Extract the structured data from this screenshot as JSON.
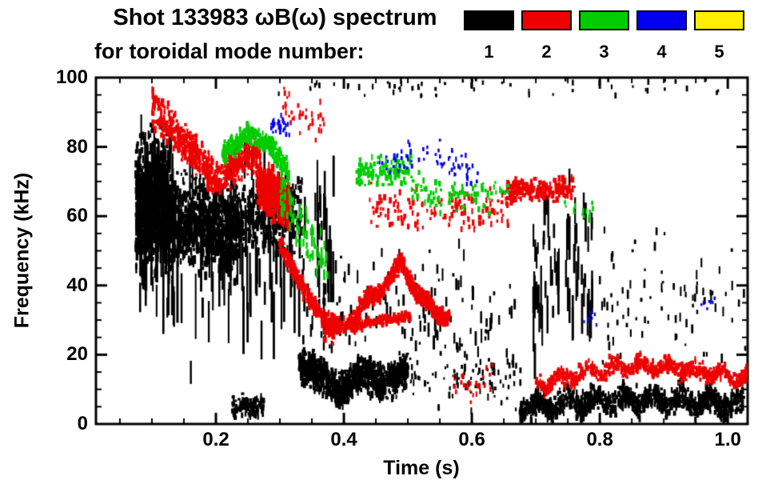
{
  "chart_data": {
    "type": "scatter",
    "title": "Shot 133983 ωB(ω) spectrum",
    "subtitle": "for toroidal mode number:",
    "xlabel": "Time (s)",
    "ylabel": "Frequency (kHz)",
    "xlim": [
      0.0125,
      1.031
    ],
    "ylim": [
      0,
      100
    ],
    "xticks": [
      0.2,
      0.4,
      0.6,
      0.8,
      1.0
    ],
    "yticks": [
      0,
      20,
      40,
      60,
      80,
      100
    ],
    "x_minor_step": 0.05,
    "y_minor_step": 5,
    "legend_position": "top-right",
    "grid": false,
    "legend": [
      {
        "mode": 1,
        "color": "#000000"
      },
      {
        "mode": 2,
        "color": "#ee0000"
      },
      {
        "mode": 3,
        "color": "#00cc00"
      },
      {
        "mode": 4,
        "color": "#0000ee"
      },
      {
        "mode": 5,
        "color": "#ffee00"
      }
    ],
    "clusters": [
      {
        "mode": 1,
        "n": 700,
        "t": [
          0.075,
          0.125
        ],
        "path": [
          [
            0.075,
            64
          ],
          [
            0.125,
            66
          ]
        ],
        "spread": 17,
        "sz": [
          2,
          4,
          3,
          14
        ],
        "seed": 1
      },
      {
        "mode": 1,
        "n": 130,
        "t": [
          0.078,
          0.135
        ],
        "path": [
          [
            0.078,
            60
          ],
          [
            0.135,
            60
          ]
        ],
        "spread": 22,
        "sz": [
          2,
          3,
          18,
          60
        ],
        "seed": 2
      },
      {
        "mode": 1,
        "n": 900,
        "t": [
          0.115,
          0.235
        ],
        "path": [
          [
            0.115,
            60
          ],
          [
            0.235,
            55
          ]
        ],
        "spread": 12,
        "sz": [
          2,
          4,
          3,
          12
        ],
        "seed": 3
      },
      {
        "mode": 1,
        "n": 95,
        "t": [
          0.115,
          0.345
        ],
        "path": [
          [
            0.115,
            50
          ],
          [
            0.345,
            50
          ]
        ],
        "spread": 28,
        "sz": [
          2,
          3,
          24,
          85
        ],
        "seed": 4
      },
      {
        "mode": 1,
        "n": 380,
        "t": [
          0.215,
          0.335
        ],
        "path": [
          [
            0.215,
            58
          ],
          [
            0.335,
            62
          ]
        ],
        "spread": 10,
        "sz": [
          2,
          4,
          3,
          12
        ],
        "seed": 5
      },
      {
        "mode": 1,
        "n": 130,
        "t": [
          0.225,
          0.275
        ],
        "path": [
          [
            0.225,
            5
          ],
          [
            0.275,
            5
          ]
        ],
        "spread": 3,
        "sz": [
          2,
          4,
          3,
          8
        ],
        "seed": 6
      },
      {
        "mode": 1,
        "n": 1000,
        "t": [
          0.33,
          0.5
        ],
        "path": [
          [
            0.33,
            18
          ],
          [
            0.36,
            12
          ],
          [
            0.4,
            12
          ],
          [
            0.44,
            13
          ],
          [
            0.5,
            14
          ]
        ],
        "spread": 5,
        "sz": [
          2,
          4,
          3,
          10
        ],
        "wiggle": [
          2,
          90
        ],
        "seed": 7
      },
      {
        "mode": 1,
        "n": 140,
        "t": [
          0.33,
          0.67
        ],
        "path": [
          [
            0.33,
            35
          ],
          [
            0.67,
            30
          ]
        ],
        "spread": 18,
        "sz": [
          2,
          3,
          3,
          18
        ],
        "seed": 8
      },
      {
        "mode": 1,
        "n": 25,
        "t": [
          0.355,
          0.385
        ],
        "path": [
          [
            0.355,
            55
          ],
          [
            0.385,
            55
          ]
        ],
        "spread": 30,
        "sz": [
          2,
          3,
          20,
          70
        ],
        "seed": 14
      },
      {
        "mode": 1,
        "n": 60,
        "t": [
          0.28,
          1.02
        ],
        "path": [
          [
            0.28,
            97
          ],
          [
            1.02,
            97
          ]
        ],
        "spread": 3,
        "sz": [
          2,
          3,
          3,
          8
        ],
        "seed": 9
      },
      {
        "mode": 1,
        "n": 1100,
        "t": [
          0.675,
          1.025
        ],
        "path": [
          [
            0.675,
            5
          ],
          [
            0.75,
            6
          ],
          [
            0.85,
            7
          ],
          [
            1.025,
            6
          ]
        ],
        "spread": 3.5,
        "sz": [
          2,
          4,
          3,
          9
        ],
        "wiggle": [
          1.5,
          140
        ],
        "seed": 10
      },
      {
        "mode": 1,
        "n": 70,
        "t": [
          0.695,
          0.79
        ],
        "path": [
          [
            0.695,
            45
          ],
          [
            0.79,
            45
          ]
        ],
        "spread": 28,
        "sz": [
          2,
          3,
          14,
          55
        ],
        "seed": 11
      },
      {
        "mode": 1,
        "n": 85,
        "t": [
          0.8,
          1.03
        ],
        "path": [
          [
            0.8,
            35
          ],
          [
            1.03,
            35
          ]
        ],
        "spread": 20,
        "sz": [
          2,
          3,
          3,
          12
        ],
        "seed": 12
      },
      {
        "mode": 1,
        "n": 80,
        "t": [
          0.5,
          0.68
        ],
        "path": [
          [
            0.5,
            14
          ],
          [
            0.68,
            12
          ]
        ],
        "spread": 9,
        "sz": [
          2,
          3,
          3,
          9
        ],
        "seed": 13
      },
      {
        "mode": 2,
        "n": 200,
        "t": [
          0.1,
          0.17
        ],
        "path": [
          [
            0.1,
            92
          ],
          [
            0.17,
            78
          ]
        ],
        "spread": 6,
        "sz": [
          2,
          4,
          3,
          9
        ],
        "seed": 21
      },
      {
        "mode": 2,
        "n": 450,
        "t": [
          0.14,
          0.27
        ],
        "path": [
          [
            0.14,
            80
          ],
          [
            0.2,
            73
          ],
          [
            0.27,
            76
          ]
        ],
        "spread": 5,
        "sz": [
          2,
          4,
          3,
          9
        ],
        "wiggle": [
          2,
          70
        ],
        "seed": 22
      },
      {
        "mode": 2,
        "n": 420,
        "t": [
          0.265,
          0.315
        ],
        "path": [
          [
            0.265,
            70
          ],
          [
            0.315,
            63
          ]
        ],
        "spread": 6,
        "sz": [
          2,
          5,
          4,
          12
        ],
        "seed": 23
      },
      {
        "mode": 2,
        "n": 250,
        "t": [
          0.3,
          0.385
        ],
        "path": [
          [
            0.3,
            52
          ],
          [
            0.34,
            38
          ],
          [
            0.385,
            26
          ]
        ],
        "spread": 3,
        "sz": [
          2,
          4,
          3,
          9
        ],
        "seed": 24
      },
      {
        "mode": 2,
        "n": 700,
        "t": [
          0.37,
          0.565
        ],
        "path": [
          [
            0.37,
            26
          ],
          [
            0.42,
            31
          ],
          [
            0.46,
            40
          ],
          [
            0.49,
            45
          ],
          [
            0.52,
            38
          ],
          [
            0.545,
            30
          ],
          [
            0.565,
            33
          ]
        ],
        "spread": 2.5,
        "sz": [
          2,
          5,
          3,
          9
        ],
        "wiggle": [
          1.5,
          120
        ],
        "seed": 25
      },
      {
        "mode": 2,
        "n": 200,
        "t": [
          0.41,
          0.505
        ],
        "path": [
          [
            0.41,
            28
          ],
          [
            0.46,
            30
          ],
          [
            0.505,
            31
          ]
        ],
        "spread": 1.5,
        "sz": [
          2,
          4,
          3,
          7
        ],
        "seed": 26
      },
      {
        "mode": 2,
        "n": 140,
        "t": [
          0.44,
          0.66
        ],
        "path": [
          [
            0.44,
            63
          ],
          [
            0.55,
            60
          ],
          [
            0.66,
            62
          ]
        ],
        "spread": 6,
        "sz": [
          2,
          4,
          3,
          8
        ],
        "seed": 27
      },
      {
        "mode": 2,
        "n": 170,
        "t": [
          0.655,
          0.76
        ],
        "path": [
          [
            0.655,
            67
          ],
          [
            0.76,
            68
          ]
        ],
        "spread": 3,
        "sz": [
          2,
          5,
          3,
          9
        ],
        "seed": 28
      },
      {
        "mode": 2,
        "n": 650,
        "t": [
          0.7,
          1.03
        ],
        "path": [
          [
            0.7,
            11
          ],
          [
            0.78,
            15
          ],
          [
            0.85,
            17
          ],
          [
            0.93,
            16
          ],
          [
            1.03,
            13
          ]
        ],
        "spread": 2.5,
        "sz": [
          2,
          4,
          3,
          8
        ],
        "wiggle": [
          1.2,
          150
        ],
        "seed": 29
      },
      {
        "mode": 2,
        "n": 30,
        "t": [
          0.57,
          0.635
        ],
        "path": [
          [
            0.57,
            12
          ],
          [
            0.635,
            12
          ]
        ],
        "spread": 6,
        "sz": [
          2,
          3,
          3,
          7
        ],
        "seed": 30
      },
      {
        "mode": 2,
        "n": 40,
        "t": [
          0.3,
          0.37
        ],
        "path": [
          [
            0.3,
            90
          ],
          [
            0.37,
            88
          ]
        ],
        "spread": 6,
        "sz": [
          2,
          3,
          3,
          8
        ],
        "seed": 31
      },
      {
        "mode": 3,
        "n": 280,
        "t": [
          0.21,
          0.315
        ],
        "path": [
          [
            0.21,
            78
          ],
          [
            0.25,
            84
          ],
          [
            0.29,
            79
          ],
          [
            0.315,
            72
          ]
        ],
        "spread": 3,
        "sz": [
          2,
          4,
          3,
          9
        ],
        "seed": 41
      },
      {
        "mode": 3,
        "n": 80,
        "t": [
          0.3,
          0.375
        ],
        "path": [
          [
            0.3,
            68
          ],
          [
            0.375,
            45
          ]
        ],
        "spread": 8,
        "sz": [
          2,
          3,
          4,
          14
        ],
        "seed": 42
      },
      {
        "mode": 3,
        "n": 120,
        "t": [
          0.42,
          0.505
        ],
        "path": [
          [
            0.42,
            72
          ],
          [
            0.505,
            74
          ]
        ],
        "spread": 4,
        "sz": [
          2,
          4,
          3,
          8
        ],
        "seed": 43
      },
      {
        "mode": 3,
        "n": 90,
        "t": [
          0.5,
          0.66
        ],
        "path": [
          [
            0.5,
            68
          ],
          [
            0.58,
            65
          ],
          [
            0.66,
            68
          ]
        ],
        "spread": 5,
        "sz": [
          2,
          4,
          3,
          8
        ],
        "seed": 44
      },
      {
        "mode": 3,
        "n": 15,
        "t": [
          0.74,
          0.79
        ],
        "path": [
          [
            0.74,
            62
          ],
          [
            0.79,
            62
          ]
        ],
        "spread": 3,
        "sz": [
          2,
          3,
          3,
          7
        ],
        "seed": 45
      },
      {
        "mode": 4,
        "n": 30,
        "t": [
          0.285,
          0.315
        ],
        "path": [
          [
            0.285,
            86
          ],
          [
            0.315,
            86
          ]
        ],
        "spread": 3,
        "sz": [
          2,
          3,
          3,
          7
        ],
        "seed": 51
      },
      {
        "mode": 4,
        "n": 70,
        "t": [
          0.45,
          0.61
        ],
        "path": [
          [
            0.45,
            75
          ],
          [
            0.53,
            78
          ],
          [
            0.61,
            72
          ]
        ],
        "spread": 4,
        "sz": [
          2,
          3,
          3,
          7
        ],
        "seed": 52
      },
      {
        "mode": 4,
        "n": 7,
        "t": [
          0.77,
          0.795
        ],
        "path": [
          [
            0.77,
            30
          ],
          [
            0.795,
            30
          ]
        ],
        "spread": 2,
        "sz": [
          2,
          3,
          3,
          6
        ],
        "seed": 53
      },
      {
        "mode": 4,
        "n": 7,
        "t": [
          0.955,
          0.98
        ],
        "path": [
          [
            0.955,
            35
          ],
          [
            0.98,
            35
          ]
        ],
        "spread": 2,
        "sz": [
          2,
          3,
          3,
          6
        ],
        "seed": 54
      }
    ]
  }
}
